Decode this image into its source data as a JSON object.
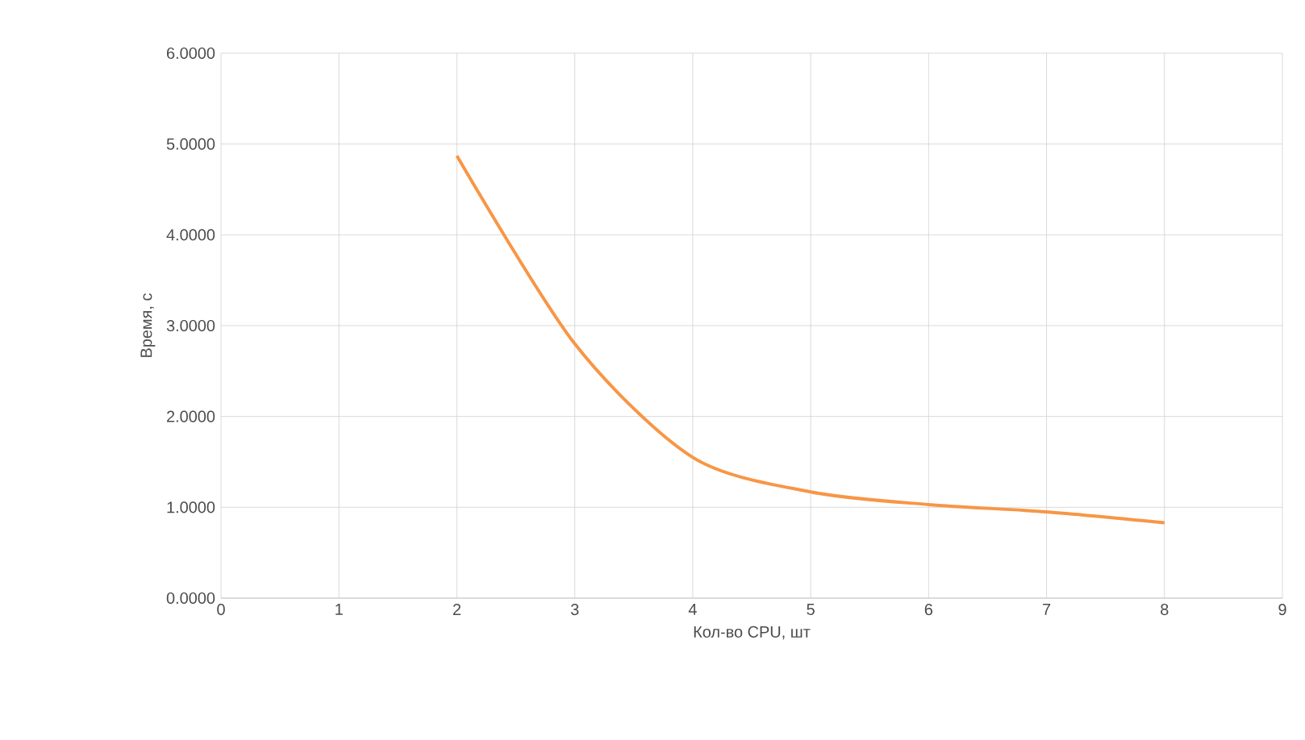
{
  "chart_data": {
    "type": "line",
    "xlabel": "Кол-во CPU, шт",
    "ylabel": "Время, с",
    "x": [
      2,
      3,
      4,
      5,
      6,
      7,
      8
    ],
    "series": [
      {
        "color": "#f79646",
        "values": [
          4.87,
          2.8,
          1.55,
          1.17,
          1.03,
          0.95,
          0.83
        ]
      }
    ],
    "xlim": [
      0,
      9
    ],
    "xticks": [
      0,
      1,
      2,
      3,
      4,
      5,
      6,
      7,
      8,
      9
    ],
    "ylim": [
      0,
      6
    ],
    "yticks": [
      {
        "value": 0,
        "label": "0.0000"
      },
      {
        "value": 1,
        "label": "1.0000"
      },
      {
        "value": 2,
        "label": "2.0000"
      },
      {
        "value": 3,
        "label": "3.0000"
      },
      {
        "value": 4,
        "label": "4.0000"
      },
      {
        "value": 5,
        "label": "5.0000"
      },
      {
        "value": 6,
        "label": "6.0000"
      }
    ],
    "grid": true,
    "marker": "none",
    "line_style": "solid"
  }
}
